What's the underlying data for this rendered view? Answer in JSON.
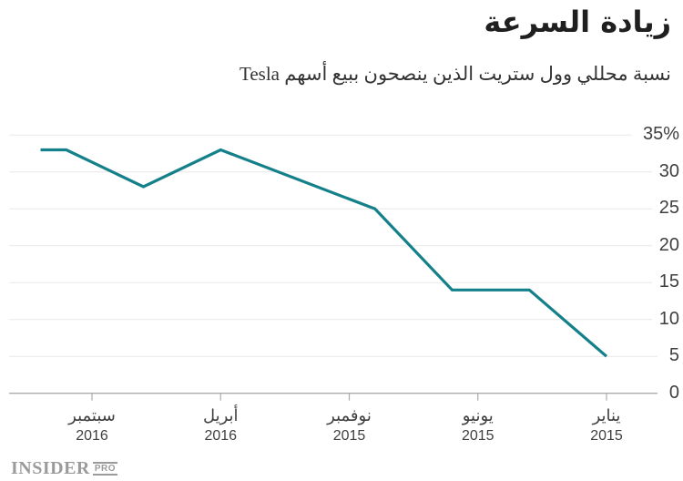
{
  "header": {
    "title": "زيادة السرعة",
    "subtitle": "نسبة محللي وول ستريت الذين ينصحون ببيع أسهم Tesla"
  },
  "chart_data": {
    "type": "line",
    "title": "زيادة السرعة",
    "subtitle": "نسبة محللي وول ستريت الذين ينصحون ببيع أسهم Tesla",
    "unit": "%",
    "x_axis_direction": "reversed-time (newest on left, oldest on right)",
    "ylim": [
      0,
      35
    ],
    "grid": true,
    "legend": "none",
    "y_ticks": [
      {
        "value": 35,
        "label": "35%"
      },
      {
        "value": 30,
        "label": "30"
      },
      {
        "value": 25,
        "label": "25"
      },
      {
        "value": 20,
        "label": "20"
      },
      {
        "value": 15,
        "label": "15"
      },
      {
        "value": 10,
        "label": "10"
      },
      {
        "value": 5,
        "label": "5"
      },
      {
        "value": 0,
        "label": "0"
      }
    ],
    "x_ticks": [
      {
        "t": 20,
        "month": "سبتمبر",
        "year": "2016"
      },
      {
        "t": 15,
        "month": "أبريل",
        "year": "2016"
      },
      {
        "t": 10,
        "month": "نوفمبر",
        "year": "2015"
      },
      {
        "t": 5,
        "month": "يونيو",
        "year": "2015"
      },
      {
        "t": 0,
        "month": "يناير",
        "year": "2015"
      }
    ],
    "points_note": "t = months after Jan 2015; values are % of analysts with sell rating",
    "points": [
      {
        "date": "2015-01",
        "t": 0,
        "value": 5
      },
      {
        "date": "2015-04",
        "t": 3,
        "value": 14
      },
      {
        "date": "2015-07",
        "t": 6,
        "value": 14
      },
      {
        "date": "2015-10",
        "t": 9,
        "value": 25
      },
      {
        "date": "2016-04",
        "t": 15,
        "value": 33
      },
      {
        "date": "2016-07",
        "t": 18,
        "value": 28
      },
      {
        "date": "2016-10",
        "t": 21,
        "value": 33
      },
      {
        "date": "2016-11",
        "t": 22,
        "value": 33
      }
    ],
    "colors": {
      "line": "#14808a",
      "grid": "#e8e8e8",
      "axis": "#ababab",
      "labels": "#3f3f3f"
    }
  },
  "logo": {
    "text": "INSIDER",
    "badge": "PRO"
  }
}
